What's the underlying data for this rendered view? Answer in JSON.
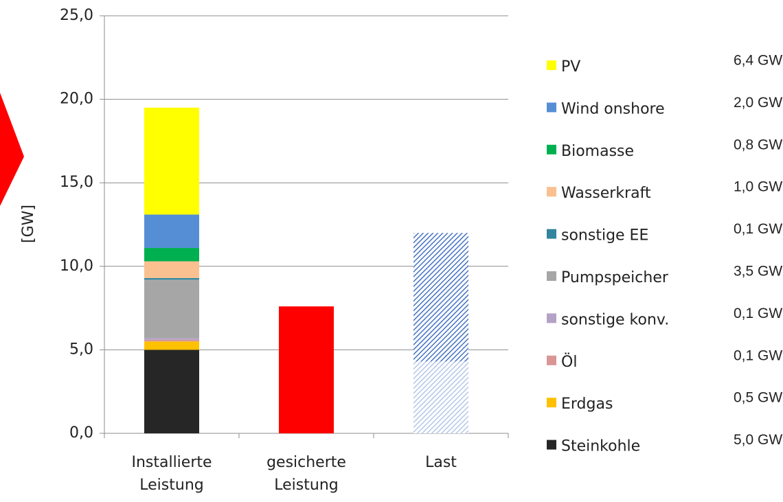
{
  "chart_data": {
    "type": "stacked_bar",
    "y_label": "[GW]",
    "categories": [
      "Installierte Leistung",
      "gesicherte Leistung",
      "Last"
    ],
    "ylim": [
      0,
      25
    ],
    "yticks": [
      {
        "value": 0,
        "label": "0,0"
      },
      {
        "value": 5,
        "label": "5,0"
      },
      {
        "value": 10,
        "label": "10,0"
      },
      {
        "value": 15,
        "label": "15,0"
      },
      {
        "value": 20,
        "label": "20,0"
      },
      {
        "value": 25,
        "label": "25,0"
      }
    ],
    "grid": true,
    "legend": "right",
    "series": [
      {
        "name": "Steinkohle",
        "color": "#262626",
        "values": [
          5.0,
          null,
          null
        ],
        "value_labels": [
          "5,0 GW",
          null,
          null
        ]
      },
      {
        "name": "Erdgas",
        "color": "#ffc000",
        "values": [
          0.5,
          null,
          null
        ],
        "value_labels": [
          "0,5 GW",
          null,
          null
        ]
      },
      {
        "name": "Öl",
        "color": "#d99694",
        "values": [
          0.1,
          null,
          null
        ],
        "value_labels": [
          "0,1 GW",
          null,
          null
        ]
      },
      {
        "name": "sonstige konv.",
        "color": "#b3a2c7",
        "values": [
          0.1,
          null,
          null
        ],
        "value_labels": [
          "0,1 GW",
          null,
          null
        ]
      },
      {
        "name": "Pumpspeicher",
        "color": "#a6a6a6",
        "values": [
          3.5,
          null,
          null
        ],
        "value_labels": [
          "3,5 GW",
          null,
          null
        ]
      },
      {
        "name": "sonstige EE",
        "color": "#31859c",
        "values": [
          0.1,
          null,
          null
        ],
        "value_labels": [
          "0,1 GW",
          null,
          null
        ]
      },
      {
        "name": "Wasserkraft",
        "color": "#fac090",
        "values": [
          1.0,
          null,
          null
        ],
        "value_labels": [
          "1,0 GW",
          null,
          null
        ]
      },
      {
        "name": "Biomasse",
        "color": "#00b050",
        "values": [
          0.8,
          null,
          null
        ],
        "value_labels": [
          "0,8 GW",
          null,
          null
        ]
      },
      {
        "name": "Wind onshore",
        "color": "#558ed5",
        "values": [
          2.0,
          null,
          null
        ],
        "value_labels": [
          "2,0 GW",
          null,
          null
        ]
      },
      {
        "name": "PV",
        "color": "#ffff00",
        "values": [
          6.4,
          null,
          null
        ],
        "value_labels": [
          "6,4 GW",
          null,
          null
        ]
      },
      {
        "color": "#ff0000",
        "values": [
          null,
          7.6,
          null
        ]
      },
      {
        "color": "#b4c6e7",
        "hatch": true,
        "values": [
          null,
          null,
          4.3
        ]
      },
      {
        "color": "#4472c4",
        "hatch": true,
        "values": [
          null,
          null,
          7.7
        ]
      }
    ]
  }
}
